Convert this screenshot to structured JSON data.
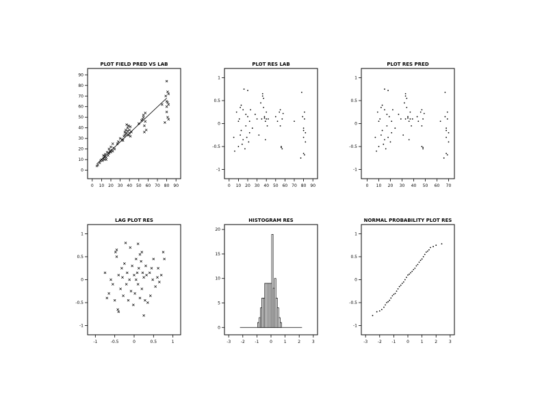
{
  "chart_data": [
    {
      "type": "scatter",
      "title": "PLOT FIELD PRED VS LAB",
      "marker": "x",
      "xlim": [
        -5,
        95
      ],
      "ylim": [
        -8,
        96
      ],
      "xticks": [
        0,
        10,
        20,
        30,
        40,
        50,
        60,
        70,
        80,
        90
      ],
      "yticks": [
        0,
        10,
        20,
        30,
        40,
        50,
        60,
        70,
        80,
        90
      ],
      "fit_line": [
        [
          5,
          6
        ],
        [
          80,
          68
        ]
      ],
      "points": [
        [
          5,
          4
        ],
        [
          6,
          5
        ],
        [
          8,
          7
        ],
        [
          9,
          9
        ],
        [
          10,
          10
        ],
        [
          11,
          9
        ],
        [
          12,
          11
        ],
        [
          12,
          14
        ],
        [
          13,
          12
        ],
        [
          13,
          10
        ],
        [
          14,
          15
        ],
        [
          14,
          13
        ],
        [
          15,
          10
        ],
        [
          15,
          12
        ],
        [
          16,
          17
        ],
        [
          17,
          14
        ],
        [
          18,
          20
        ],
        [
          18,
          16
        ],
        [
          19,
          18
        ],
        [
          20,
          22
        ],
        [
          20,
          17
        ],
        [
          21,
          19
        ],
        [
          22,
          18
        ],
        [
          22,
          25
        ],
        [
          23,
          21
        ],
        [
          24,
          20
        ],
        [
          27,
          25
        ],
        [
          28,
          27
        ],
        [
          30,
          30
        ],
        [
          32,
          29
        ],
        [
          33,
          28
        ],
        [
          34,
          32
        ],
        [
          35,
          33
        ],
        [
          35,
          36
        ],
        [
          36,
          38
        ],
        [
          36,
          34
        ],
        [
          37,
          43
        ],
        [
          37,
          35
        ],
        [
          38,
          40
        ],
        [
          38,
          37
        ],
        [
          39,
          33
        ],
        [
          39,
          42
        ],
        [
          40,
          35
        ],
        [
          40,
          38
        ],
        [
          41,
          32
        ],
        [
          41,
          41
        ],
        [
          42,
          36
        ],
        [
          50,
          44
        ],
        [
          53,
          47
        ],
        [
          54,
          48
        ],
        [
          55,
          50
        ],
        [
          55,
          52
        ],
        [
          56,
          42
        ],
        [
          56,
          36
        ],
        [
          57,
          46
        ],
        [
          57,
          54
        ],
        [
          58,
          38
        ],
        [
          75,
          62
        ],
        [
          78,
          45
        ],
        [
          79,
          70
        ],
        [
          80,
          55
        ],
        [
          80,
          60
        ],
        [
          80,
          65
        ],
        [
          80,
          84
        ],
        [
          81,
          64
        ],
        [
          81,
          50
        ],
        [
          81,
          74
        ],
        [
          82,
          72
        ],
        [
          82,
          48
        ],
        [
          82,
          62
        ]
      ]
    },
    {
      "type": "scatter",
      "title": "PLOT RES LAB",
      "marker": "dot",
      "xlim": [
        -5,
        95
      ],
      "ylim": [
        -1.2,
        1.2
      ],
      "xticks": [
        0,
        10,
        20,
        30,
        40,
        50,
        60,
        70,
        80,
        90
      ],
      "yticks": [
        -1,
        -0.5,
        0,
        0.5,
        1
      ],
      "yticklabels": [
        "-1",
        "-0.5",
        "0",
        "0.5",
        "1"
      ],
      "points": [
        [
          5,
          -0.3
        ],
        [
          6,
          -0.6
        ],
        [
          8,
          0.25
        ],
        [
          10,
          0.05
        ],
        [
          10,
          -0.5
        ],
        [
          11,
          0.1
        ],
        [
          12,
          0.35
        ],
        [
          12,
          -0.25
        ],
        [
          13,
          0.4
        ],
        [
          13,
          -0.15
        ],
        [
          14,
          -0.45
        ],
        [
          15,
          0.3
        ],
        [
          15,
          -0.35
        ],
        [
          16,
          0.75
        ],
        [
          17,
          -0.55
        ],
        [
          18,
          0.2
        ],
        [
          18,
          -0.05
        ],
        [
          19,
          -0.3
        ],
        [
          20,
          0.72
        ],
        [
          20,
          0.15
        ],
        [
          21,
          -0.4
        ],
        [
          22,
          0.05
        ],
        [
          22,
          -0.2
        ],
        [
          23,
          0.3
        ],
        [
          25,
          -0.1
        ],
        [
          28,
          0.2
        ],
        [
          30,
          0.1
        ],
        [
          32,
          -0.25
        ],
        [
          34,
          0.45
        ],
        [
          35,
          0.1
        ],
        [
          36,
          0.65
        ],
        [
          36,
          0.6
        ],
        [
          37,
          0.55
        ],
        [
          37,
          0.35
        ],
        [
          38,
          0.15
        ],
        [
          38,
          0.12
        ],
        [
          39,
          0.05
        ],
        [
          39,
          -0.35
        ],
        [
          40,
          0.25
        ],
        [
          40,
          0.1
        ],
        [
          41,
          -0.05
        ],
        [
          42,
          0.1
        ],
        [
          50,
          0.15
        ],
        [
          52,
          0.05
        ],
        [
          54,
          0.25
        ],
        [
          55,
          0.3
        ],
        [
          55,
          -0.05
        ],
        [
          56,
          -0.5
        ],
        [
          56,
          -0.52
        ],
        [
          57,
          -0.55
        ],
        [
          57,
          0.1
        ],
        [
          58,
          0.22
        ],
        [
          70,
          0.05
        ],
        [
          77,
          -0.75
        ],
        [
          78,
          0.68
        ],
        [
          79,
          0.15
        ],
        [
          80,
          -0.1
        ],
        [
          80,
          -0.15
        ],
        [
          80,
          -0.3
        ],
        [
          80,
          -0.65
        ],
        [
          81,
          -0.68
        ],
        [
          81,
          0.1
        ],
        [
          81,
          0.25
        ],
        [
          82,
          -0.2
        ],
        [
          82,
          -0.4
        ]
      ]
    },
    {
      "type": "scatter",
      "title": "PLOT RES PRED",
      "marker": "dot",
      "xlim": [
        -5,
        75
      ],
      "ylim": [
        -1.2,
        1.2
      ],
      "xticks": [
        0,
        10,
        20,
        30,
        40,
        50,
        60,
        70
      ],
      "yticks": [
        -1,
        -0.5,
        0,
        0.5,
        1
      ],
      "yticklabels": [
        "-1",
        "-0.5",
        "0",
        "0.5",
        "1"
      ],
      "points": [
        [
          7,
          -0.3
        ],
        [
          8,
          -0.6
        ],
        [
          9,
          0.25
        ],
        [
          10,
          0.05
        ],
        [
          10,
          -0.5
        ],
        [
          11,
          0.1
        ],
        [
          12,
          0.35
        ],
        [
          12,
          -0.25
        ],
        [
          13,
          0.4
        ],
        [
          13,
          -0.15
        ],
        [
          14,
          -0.45
        ],
        [
          15,
          0.3
        ],
        [
          15,
          -0.35
        ],
        [
          15,
          0.75
        ],
        [
          16,
          -0.55
        ],
        [
          17,
          0.2
        ],
        [
          17,
          -0.05
        ],
        [
          18,
          -0.3
        ],
        [
          18,
          0.72
        ],
        [
          19,
          0.15
        ],
        [
          20,
          -0.4
        ],
        [
          21,
          0.05
        ],
        [
          21,
          -0.2
        ],
        [
          22,
          0.3
        ],
        [
          24,
          -0.1
        ],
        [
          27,
          0.2
        ],
        [
          29,
          0.1
        ],
        [
          31,
          -0.25
        ],
        [
          32,
          0.45
        ],
        [
          33,
          0.1
        ],
        [
          33,
          0.65
        ],
        [
          33,
          0.6
        ],
        [
          34,
          0.55
        ],
        [
          34,
          0.35
        ],
        [
          35,
          0.15
        ],
        [
          35,
          0.12
        ],
        [
          36,
          0.05
        ],
        [
          36,
          -0.35
        ],
        [
          37,
          0.25
        ],
        [
          37,
          0.1
        ],
        [
          38,
          -0.05
        ],
        [
          39,
          0.1
        ],
        [
          43,
          0.15
        ],
        [
          44,
          0.05
        ],
        [
          46,
          0.25
        ],
        [
          47,
          0.3
        ],
        [
          47,
          -0.05
        ],
        [
          47,
          -0.5
        ],
        [
          48,
          -0.52
        ],
        [
          48,
          -0.55
        ],
        [
          48,
          0.1
        ],
        [
          49,
          0.22
        ],
        [
          63,
          0.05
        ],
        [
          66,
          -0.75
        ],
        [
          67,
          0.68
        ],
        [
          67,
          0.15
        ],
        [
          68,
          -0.1
        ],
        [
          68,
          -0.15
        ],
        [
          68,
          -0.3
        ],
        [
          68,
          -0.65
        ],
        [
          69,
          -0.68
        ],
        [
          69,
          0.1
        ],
        [
          69,
          0.25
        ],
        [
          70,
          -0.2
        ],
        [
          70,
          -0.4
        ]
      ]
    },
    {
      "type": "scatter",
      "title": "LAG PLOT RES",
      "marker": "x",
      "xlim": [
        -1.2,
        1.2
      ],
      "ylim": [
        -1.2,
        1.2
      ],
      "xticks": [
        -1,
        -0.5,
        0,
        0.5,
        1
      ],
      "xticklabels": [
        "-1",
        "-0.5",
        "0",
        "0.5",
        "1"
      ],
      "yticks": [
        -1,
        -0.5,
        0,
        0.5,
        1
      ],
      "yticklabels": [
        "-1",
        "-0.5",
        "0",
        "0.5",
        "1"
      ],
      "points": [
        [
          -0.75,
          0.15
        ],
        [
          -0.7,
          -0.4
        ],
        [
          -0.65,
          -0.3
        ],
        [
          -0.6,
          0.0
        ],
        [
          -0.55,
          -0.1
        ],
        [
          -0.5,
          -0.45
        ],
        [
          -0.48,
          0.6
        ],
        [
          -0.45,
          0.5
        ],
        [
          -0.45,
          0.65
        ],
        [
          -0.42,
          -0.65
        ],
        [
          -0.4,
          0.1
        ],
        [
          -0.4,
          -0.7
        ],
        [
          -0.35,
          -0.2
        ],
        [
          -0.32,
          0.25
        ],
        [
          -0.3,
          0.05
        ],
        [
          -0.28,
          -0.35
        ],
        [
          -0.25,
          0.35
        ],
        [
          -0.22,
          0.8
        ],
        [
          -0.2,
          -0.1
        ],
        [
          -0.18,
          0.15
        ],
        [
          -0.15,
          -0.45
        ],
        [
          -0.12,
          0.0
        ],
        [
          -0.1,
          0.7
        ],
        [
          -0.08,
          -0.25
        ],
        [
          -0.05,
          0.3
        ],
        [
          -0.02,
          -0.55
        ],
        [
          0.0,
          0.1
        ],
        [
          0.02,
          -0.3
        ],
        [
          0.05,
          0.45
        ],
        [
          0.05,
          0.0
        ],
        [
          0.08,
          0.15
        ],
        [
          0.1,
          -0.1
        ],
        [
          0.1,
          0.78
        ],
        [
          0.12,
          0.25
        ],
        [
          0.15,
          -0.4
        ],
        [
          0.15,
          0.55
        ],
        [
          0.18,
          0.4
        ],
        [
          0.2,
          -0.2
        ],
        [
          0.2,
          0.6
        ],
        [
          0.22,
          0.15
        ],
        [
          0.25,
          -0.78
        ],
        [
          0.25,
          0.05
        ],
        [
          0.28,
          -0.45
        ],
        [
          0.3,
          0.3
        ],
        [
          0.32,
          0.1
        ],
        [
          0.35,
          -0.5
        ],
        [
          0.4,
          0.15
        ],
        [
          0.42,
          -0.35
        ],
        [
          0.45,
          0.25
        ],
        [
          0.48,
          0.0
        ],
        [
          0.5,
          0.45
        ],
        [
          0.55,
          -0.15
        ],
        [
          0.6,
          0.05
        ],
        [
          0.62,
          0.25
        ],
        [
          0.65,
          -0.05
        ],
        [
          0.7,
          0.1
        ],
        [
          0.75,
          0.6
        ],
        [
          0.78,
          0.45
        ]
      ]
    },
    {
      "type": "bar",
      "title": "HISTOGRAM RES",
      "xlim": [
        -3.3,
        3.3
      ],
      "ylim": [
        -1.5,
        21
      ],
      "xticks": [
        -3,
        -2,
        -1,
        0,
        1,
        2,
        3
      ],
      "yticks": [
        0,
        5,
        10,
        15,
        20
      ],
      "baseline": [
        -2.2,
        2.2
      ],
      "bin_width": 0.1,
      "bins": [
        [
          -0.9,
          1
        ],
        [
          -0.8,
          2
        ],
        [
          -0.7,
          4
        ],
        [
          -0.6,
          6
        ],
        [
          -0.5,
          6
        ],
        [
          -0.4,
          9
        ],
        [
          -0.3,
          9
        ],
        [
          -0.2,
          9
        ],
        [
          -0.1,
          9
        ],
        [
          0.0,
          9
        ],
        [
          0.1,
          19
        ],
        [
          0.2,
          8
        ],
        [
          0.3,
          10
        ],
        [
          0.4,
          6
        ],
        [
          0.5,
          4
        ],
        [
          0.6,
          2
        ],
        [
          0.7,
          1
        ]
      ]
    },
    {
      "type": "scatter",
      "title": "NORMAL PROBABILITY PLOT RES",
      "marker": "dot",
      "xlim": [
        -3.3,
        3.3
      ],
      "ylim": [
        -1.2,
        1.2
      ],
      "xticks": [
        -3,
        -2,
        -1,
        0,
        1,
        2,
        3
      ],
      "yticks": [
        -1,
        -0.5,
        0,
        0.5,
        1
      ],
      "yticklabels": [
        "-1",
        "-0.5",
        "0",
        "0.5",
        "1"
      ],
      "points": [
        [
          -2.5,
          -0.78
        ],
        [
          -2.2,
          -0.7
        ],
        [
          -2.0,
          -0.68
        ],
        [
          -1.85,
          -0.65
        ],
        [
          -1.7,
          -0.6
        ],
        [
          -1.6,
          -0.55
        ],
        [
          -1.5,
          -0.5
        ],
        [
          -1.4,
          -0.48
        ],
        [
          -1.3,
          -0.45
        ],
        [
          -1.2,
          -0.4
        ],
        [
          -1.1,
          -0.35
        ],
        [
          -1.0,
          -0.32
        ],
        [
          -0.9,
          -0.3
        ],
        [
          -0.8,
          -0.25
        ],
        [
          -0.7,
          -0.2
        ],
        [
          -0.6,
          -0.15
        ],
        [
          -0.5,
          -0.12
        ],
        [
          -0.4,
          -0.08
        ],
        [
          -0.3,
          -0.05
        ],
        [
          -0.2,
          0.0
        ],
        [
          -0.1,
          0.05
        ],
        [
          0.0,
          0.1
        ],
        [
          0.1,
          0.12
        ],
        [
          0.2,
          0.15
        ],
        [
          0.3,
          0.18
        ],
        [
          0.4,
          0.22
        ],
        [
          0.5,
          0.25
        ],
        [
          0.6,
          0.3
        ],
        [
          0.7,
          0.33
        ],
        [
          0.8,
          0.38
        ],
        [
          0.9,
          0.42
        ],
        [
          1.0,
          0.45
        ],
        [
          1.1,
          0.5
        ],
        [
          1.2,
          0.55
        ],
        [
          1.3,
          0.6
        ],
        [
          1.4,
          0.62
        ],
        [
          1.5,
          0.65
        ],
        [
          1.6,
          0.7
        ],
        [
          1.8,
          0.72
        ],
        [
          2.0,
          0.75
        ],
        [
          2.4,
          0.78
        ]
      ]
    }
  ]
}
